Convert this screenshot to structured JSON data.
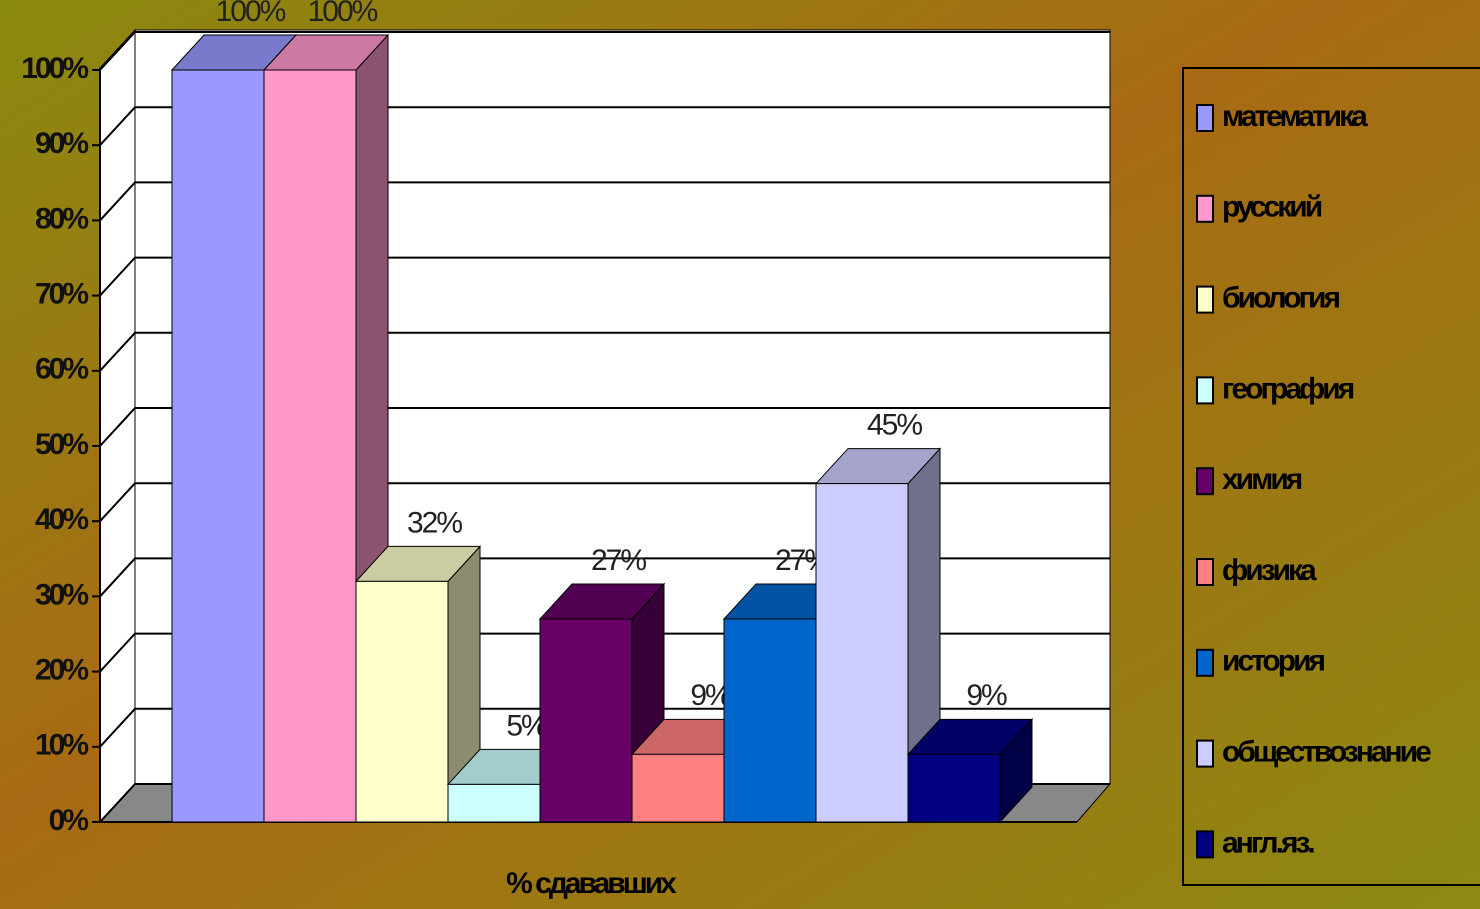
{
  "chart_data": {
    "type": "bar3d",
    "categories": [
      "% сдававших"
    ],
    "series": [
      {
        "name": "математика",
        "color": "#9999ff",
        "values": [
          100
        ],
        "value_labels": [
          "100%"
        ]
      },
      {
        "name": "русский",
        "color": "#ff99cc",
        "values": [
          100
        ],
        "value_labels": [
          "100%"
        ]
      },
      {
        "name": "биология",
        "color": "#ffffcc",
        "values": [
          32
        ],
        "value_labels": [
          "32%"
        ]
      },
      {
        "name": "география",
        "color": "#ccffff",
        "values": [
          5
        ],
        "value_labels": [
          "5%"
        ]
      },
      {
        "name": "химия",
        "color": "#660066",
        "values": [
          27
        ],
        "value_labels": [
          "27%"
        ]
      },
      {
        "name": "физика",
        "color": "#ff8080",
        "values": [
          9
        ],
        "value_labels": [
          "9%"
        ]
      },
      {
        "name": "история",
        "color": "#0066cc",
        "values": [
          27
        ],
        "value_labels": [
          "27%"
        ]
      },
      {
        "name": "обществознание",
        "color": "#ccccff",
        "values": [
          45
        ],
        "value_labels": [
          "45%"
        ]
      },
      {
        "name": "англ.яз.",
        "color": "#000080",
        "values": [
          9
        ],
        "value_labels": [
          "9%"
        ]
      }
    ],
    "ylim": [
      0,
      100
    ],
    "yticks": [
      {
        "value": 0,
        "label": "0%"
      },
      {
        "value": 10,
        "label": "10%"
      },
      {
        "value": 20,
        "label": "20%"
      },
      {
        "value": 30,
        "label": "30%"
      },
      {
        "value": 40,
        "label": "40%"
      },
      {
        "value": 50,
        "label": "50%"
      },
      {
        "value": 60,
        "label": "60%"
      },
      {
        "value": 70,
        "label": "70%"
      },
      {
        "value": 80,
        "label": "80%"
      },
      {
        "value": 90,
        "label": "90%"
      },
      {
        "value": 100,
        "label": "100%"
      }
    ],
    "grid": true,
    "legend": "right"
  }
}
